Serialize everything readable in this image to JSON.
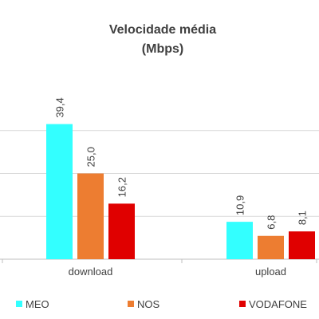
{
  "chart_data": {
    "type": "bar",
    "title": "Velocidade média",
    "subtitle": "(Mbps)",
    "categories": [
      "download",
      "upload"
    ],
    "series": [
      {
        "name": "MEO",
        "color": "#33FFFF",
        "values": [
          39.4,
          10.9
        ],
        "labels": [
          "39,4",
          "10,9"
        ]
      },
      {
        "name": "NOS",
        "color": "#ED7D31",
        "values": [
          25.0,
          6.8
        ],
        "labels": [
          "25,0",
          "6,8"
        ]
      },
      {
        "name": "VODAFONE",
        "color": "#E00000",
        "values": [
          16.2,
          8.1
        ],
        "labels": [
          "16,2",
          "8,1"
        ]
      }
    ],
    "ylim": [
      0,
      50
    ],
    "grid": true,
    "legend": "bottom"
  }
}
